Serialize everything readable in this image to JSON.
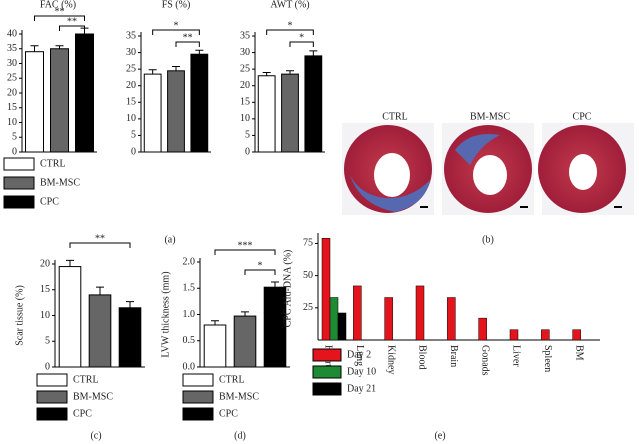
{
  "chart_data": [
    {
      "type": "bar",
      "title": "FAC (%)",
      "categories": [
        "CTRL",
        "BM-MSC",
        "CPC"
      ],
      "colors": [
        "#ffffff",
        "#666666",
        "#000000"
      ],
      "values": [
        34,
        35,
        40
      ],
      "errors": [
        2,
        1,
        2
      ],
      "ylim": [
        0,
        40
      ],
      "yticks": [
        0,
        5,
        10,
        15,
        20,
        25,
        30,
        35,
        40
      ],
      "significance": [
        {
          "from": 0,
          "to": 2,
          "label": "**"
        },
        {
          "from": 1,
          "to": 2,
          "label": "**"
        }
      ]
    },
    {
      "type": "bar",
      "title": "FS (%)",
      "colors": [
        "#ffffff",
        "#666666",
        "#000000"
      ],
      "values": [
        23.5,
        24.5,
        29.5
      ],
      "errors": [
        1.3,
        1.3,
        1.2
      ],
      "ylim": [
        0,
        35
      ],
      "yticks": [
        0,
        5,
        10,
        15,
        20,
        25,
        30,
        35
      ],
      "significance": [
        {
          "from": 0,
          "to": 2,
          "label": "*"
        },
        {
          "from": 1,
          "to": 2,
          "label": "**"
        }
      ]
    },
    {
      "type": "bar",
      "title": "AWT (%)",
      "colors": [
        "#ffffff",
        "#666666",
        "#000000"
      ],
      "values": [
        23,
        23.5,
        29
      ],
      "errors": [
        1,
        1,
        1.5
      ],
      "ylim": [
        0,
        35
      ],
      "yticks": [
        0,
        5,
        10,
        15,
        20,
        25,
        30,
        35
      ],
      "significance": [
        {
          "from": 0,
          "to": 2,
          "label": "*"
        },
        {
          "from": 1,
          "to": 2,
          "label": "*"
        }
      ]
    },
    {
      "type": "bar",
      "ylabel": "Scar tissue (%)",
      "categories": [
        "CTRL",
        "BM-MSC",
        "CPC"
      ],
      "colors": [
        "#ffffff",
        "#666666",
        "#000000"
      ],
      "values": [
        19.5,
        14,
        11.5
      ],
      "errors": [
        1.2,
        1.5,
        1.2
      ],
      "ylim": [
        0,
        20
      ],
      "yticks": [
        0,
        5,
        10,
        15,
        20
      ],
      "significance": [
        {
          "from": 0,
          "to": 2,
          "label": "**"
        }
      ]
    },
    {
      "type": "bar",
      "ylabel": "LVW thickness (mm)",
      "categories": [
        "CTRL",
        "BM-MSC",
        "CPC"
      ],
      "colors": [
        "#ffffff",
        "#666666",
        "#000000"
      ],
      "values": [
        0.8,
        0.97,
        1.52
      ],
      "errors": [
        0.08,
        0.08,
        0.1
      ],
      "ylim": [
        0,
        2
      ],
      "yticks": [
        {
          "value": 0,
          "label": "0.0"
        },
        0.5,
        {
          "value": 1,
          "label": "1.0"
        },
        1.5,
        {
          "value": 2,
          "label": "2.0"
        }
      ],
      "significance": [
        {
          "from": 0,
          "to": 2,
          "label": "***"
        },
        {
          "from": 1,
          "to": 2,
          "label": "*"
        }
      ]
    },
    {
      "type": "grouped_bar",
      "ylabel": "CPC Alu-DNA (%)",
      "categories": [
        "Heart",
        "Lung",
        "Kidney",
        "Blood",
        "Brain",
        "Gonads",
        "Liver",
        "Spleen",
        "BM"
      ],
      "series": [
        {
          "name": "Day 2",
          "color": "#e3141b",
          "values": [
            79,
            42,
            33,
            42,
            33,
            17,
            8,
            8,
            8
          ]
        },
        {
          "name": "Day 10",
          "color": "#1f8a34",
          "values": [
            33,
            null,
            null,
            null,
            null,
            null,
            null,
            null,
            null
          ]
        },
        {
          "name": "Day 21",
          "color": "#000000",
          "values": [
            21,
            null,
            null,
            null,
            null,
            null,
            null,
            null,
            null
          ]
        }
      ],
      "ylim": [
        0,
        80
      ],
      "yticks": [
        25,
        50,
        75
      ]
    }
  ],
  "images": {
    "labels": [
      "CTRL",
      "BM-MSC",
      "CPC"
    ]
  },
  "panel_labels": [
    "(a)",
    "(b)",
    "(c)",
    "(d)",
    "(e)"
  ]
}
